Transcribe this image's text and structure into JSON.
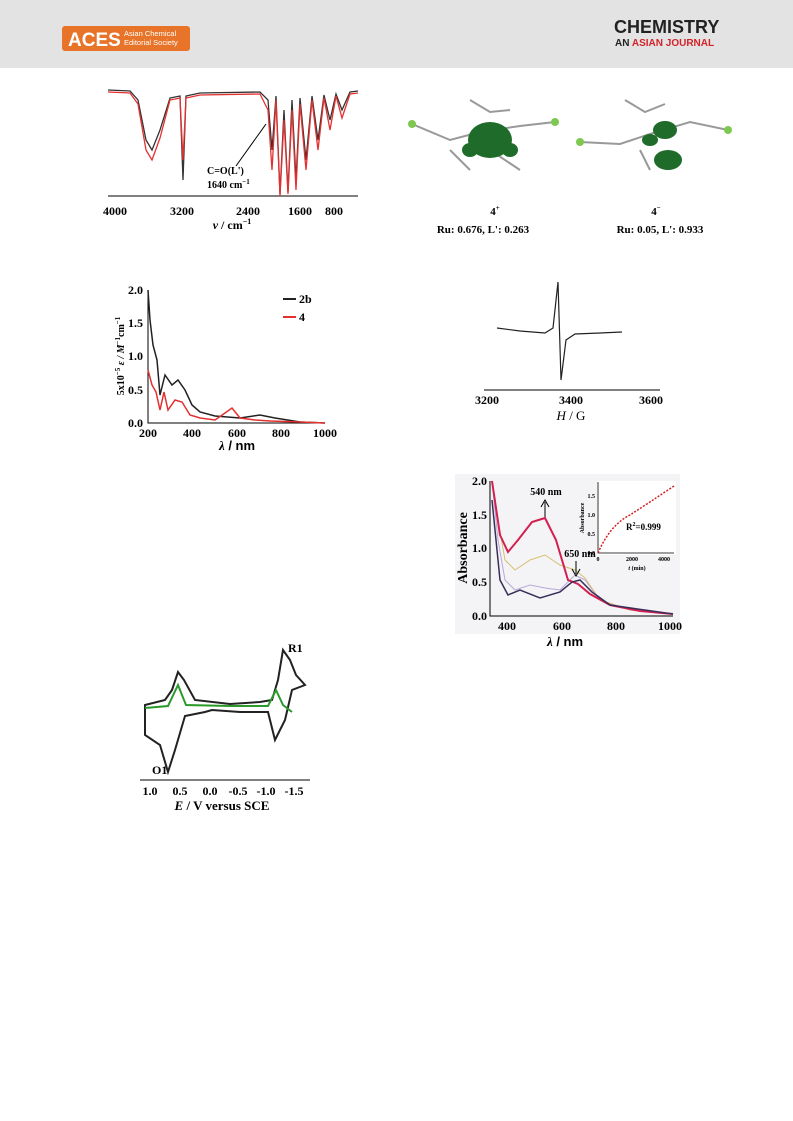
{
  "header": {
    "logo": "ACES",
    "logo_sub": [
      "Asian Chemical",
      "Editorial Society"
    ],
    "journal": "CHEMISTRY",
    "journal_sub": [
      "AN",
      "ASIAN JOURNAL"
    ]
  },
  "ir": {
    "xticks": [
      "4000",
      "3200",
      "2400",
      "1600",
      "800"
    ],
    "xlabel": {
      "symbol": "ν",
      "unit": " / cm",
      "exp": "−1"
    },
    "annotation": {
      "bond": "C=O(L')",
      "wavenumber": "1640 cm",
      "exp": "−1"
    }
  },
  "orbitals": [
    {
      "name": "4",
      "charge": "+",
      "caption": "Ru: 0.676, L': 0.263"
    },
    {
      "name": "4",
      "charge": "−",
      "caption": "Ru: 0.05, L': 0.933"
    }
  ],
  "uv": {
    "yticks": [
      "0.0",
      "0.5",
      "1.0",
      "1.5",
      "2.0"
    ],
    "xticks": [
      "200",
      "400",
      "600",
      "800",
      "1000"
    ],
    "ylabel": {
      "pre": "5x10",
      "exp1": "−5",
      "mid": " ε / M",
      "exp2": "−1",
      "post": "cm",
      "exp3": "−1"
    },
    "xlabel": {
      "symbol": "λ",
      "unit": " / nm"
    },
    "legend": [
      "2b",
      "4"
    ]
  },
  "epr": {
    "xticks": [
      "3200",
      "3400",
      "3600"
    ],
    "xlabel": {
      "symbol": "H",
      "unit": " / G"
    }
  },
  "kinetics": {
    "yticks": [
      "0.0",
      "0.5",
      "1.0",
      "1.5",
      "2.0"
    ],
    "xticks": [
      "400",
      "600",
      "800",
      "1000"
    ],
    "ylabel": "Absorbance",
    "xlabel": {
      "symbol": "λ",
      "unit": " / nm"
    },
    "annotations": [
      "540 nm",
      "650 nm"
    ],
    "inset": {
      "yticks": [
        "0.0",
        "0.5",
        "1.0",
        "1.5"
      ],
      "xticks": [
        "0",
        "2000",
        "4000"
      ],
      "ylabel": "Absorbance",
      "xlabel": {
        "symbol": "t",
        "unit": " (min)"
      },
      "fit": {
        "pre": "R",
        "exp": "2",
        "post": "=0.999"
      }
    }
  },
  "cv": {
    "xticks": [
      "1.0",
      "0.5",
      "0.0",
      "-0.5",
      "-1.0",
      "-1.5"
    ],
    "xlabel": {
      "symbol": "E",
      "unit": " / V versus SCE"
    },
    "labels": [
      "R1",
      "O1"
    ]
  }
}
